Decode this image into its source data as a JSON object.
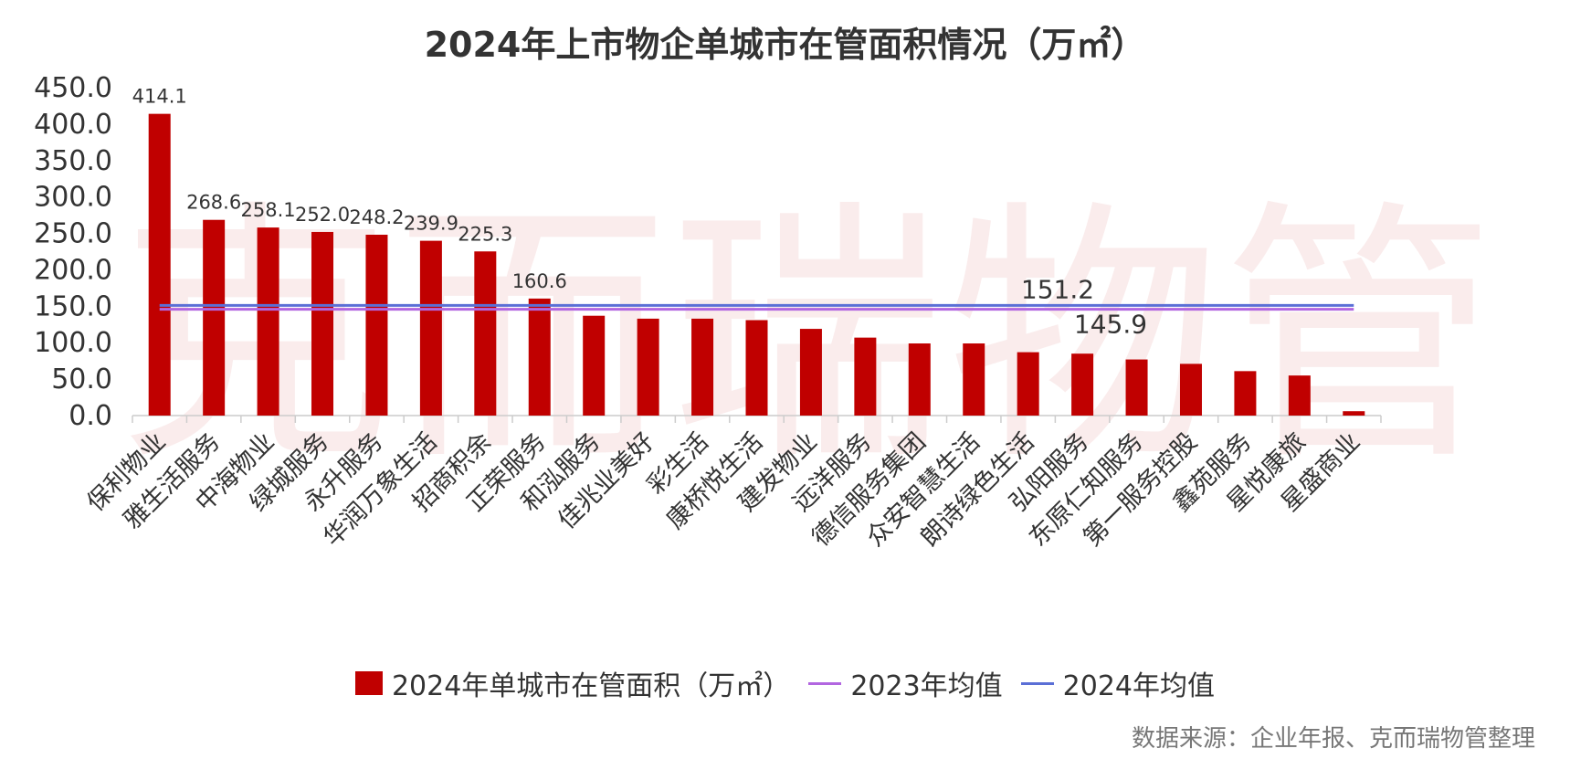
{
  "title": "2024年上市物企单城市在管面积情况（万㎡）",
  "source": "数据来源：企业年报、克而瑞物管整理",
  "watermark": "克而瑞物管",
  "legend": {
    "bar": "2024年单城市在管面积（万㎡）",
    "line2023": "2023年均值",
    "line2024": "2024年均值"
  },
  "colors": {
    "bar": "#c00000",
    "line2023": "#b266e0",
    "line2024": "#5b6fd6"
  },
  "chart_data": {
    "type": "bar",
    "title": "2024年上市物企单城市在管面积情况（万㎡）",
    "xlabel": "",
    "ylabel": "",
    "ylim": [
      0,
      450
    ],
    "yticks": [
      "0.0",
      "50.0",
      "100.0",
      "150.0",
      "200.0",
      "250.0",
      "300.0",
      "350.0",
      "400.0",
      "450.0"
    ],
    "categories": [
      "保利物业",
      "雅生活服务",
      "中海物业",
      "绿城服务",
      "永升服务",
      "华润万象生活",
      "招商积余",
      "正荣服务",
      "和泓服务",
      "佳兆业美好",
      "彩生活",
      "康桥悦生活",
      "建发物业",
      "远洋服务",
      "德信服务集团",
      "众安智慧生活",
      "朗诗绿色生活",
      "弘阳服务",
      "东原仁知服务",
      "第一服务控股",
      "鑫苑服务",
      "星悦康旅",
      "星盛商业"
    ],
    "series": [
      {
        "name": "2024年单城市在管面积（万㎡）",
        "values": [
          414.1,
          268.6,
          258.1,
          252.0,
          248.2,
          239.9,
          225.3,
          160.6,
          137,
          133,
          133,
          131,
          119,
          107,
          99,
          99,
          87,
          85,
          77,
          71,
          61,
          55,
          6
        ]
      }
    ],
    "data_labels": [
      "414.1",
      "268.6",
      "258.1",
      "252.0",
      "248.2",
      "239.9",
      "225.3",
      "160.6"
    ],
    "reference_lines": [
      {
        "name": "2023年均值",
        "value": 145.9,
        "label": "145.9"
      },
      {
        "name": "2024年均值",
        "value": 151.2,
        "label": "151.2"
      }
    ]
  }
}
